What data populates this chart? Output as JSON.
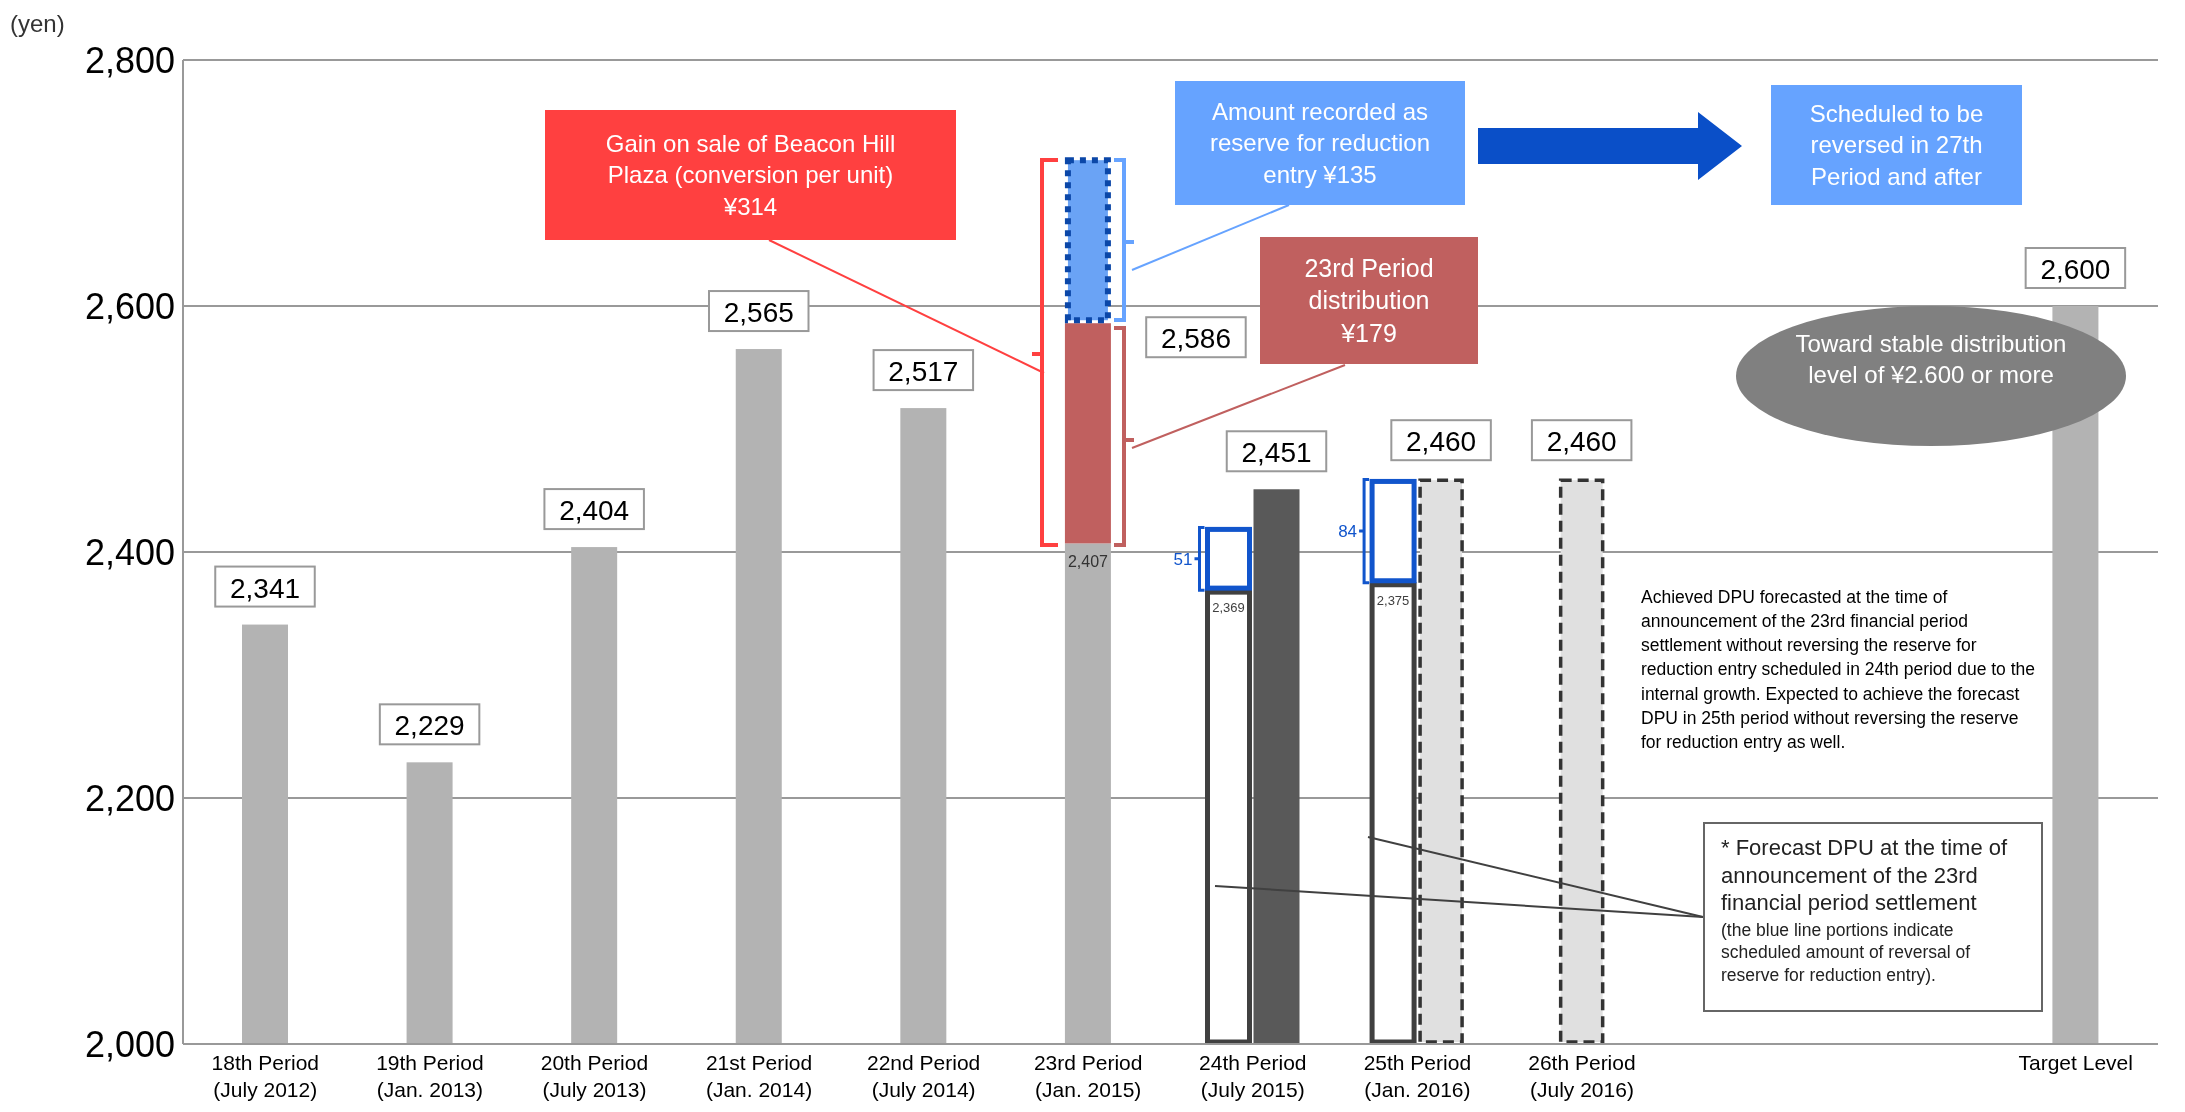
{
  "chart_data": {
    "type": "bar",
    "ylabel": "(yen)",
    "categories": [
      "18th Period (July 2012)",
      "19th Period (Jan. 2013)",
      "20th Period (July 2013)",
      "21st Period (Jan. 2014)",
      "22nd Period (July 2014)",
      "23rd Period (Jan. 2015)",
      "24th Period (July 2015)",
      "25th Period (Jan. 2016)",
      "26th Period (July 2016)",
      null,
      null,
      "Target Level"
    ],
    "ylim": [
      2000,
      2800
    ],
    "yticks": [
      {
        "value": 2000,
        "label": "2,000"
      },
      {
        "value": 2200,
        "label": "2,200"
      },
      {
        "value": 2400,
        "label": "2,400"
      },
      {
        "value": 2600,
        "label": "2,600"
      },
      {
        "value": 2800,
        "label": "2,800"
      }
    ],
    "grid": "y",
    "series": [
      {
        "color": "#b3b3b3",
        "values": [
          2341,
          2229,
          2404,
          2565,
          2517,
          2407,
          null,
          null,
          null,
          null,
          null,
          2600
        ],
        "value_labels": [
          "2,341",
          "2,229",
          "2,404",
          "2,565",
          "2,517",
          "2,407",
          null,
          null,
          null,
          null,
          null,
          "2,600"
        ]
      },
      {
        "color": "#404040",
        "line_style": "solid",
        "values": [
          null,
          null,
          null,
          null,
          null,
          null,
          2369,
          2375,
          null,
          null,
          null,
          null
        ],
        "value_labels": [
          null,
          null,
          null,
          null,
          null,
          null,
          "2,369",
          "2,375",
          null,
          null,
          null,
          null
        ]
      },
      {
        "color": "#c0605f",
        "values": [
          null,
          null,
          null,
          null,
          null,
          179,
          null,
          null,
          null,
          null,
          null,
          null
        ],
        "base": [
          null,
          null,
          null,
          null,
          null,
          2407,
          null,
          null,
          null,
          null,
          null,
          null
        ]
      },
      {
        "color": "#6aa3f5",
        "line_style": "dotted",
        "values": [
          null,
          null,
          null,
          null,
          null,
          135,
          null,
          null,
          null,
          null,
          null,
          null
        ],
        "base": [
          null,
          null,
          null,
          null,
          null,
          2586,
          null,
          null,
          null,
          null,
          null,
          null
        ]
      },
      {
        "color": "#1155cc",
        "line_style": "solid",
        "values": [
          null,
          null,
          null,
          null,
          null,
          null,
          51,
          84,
          null,
          null,
          null,
          null
        ],
        "base": [
          null,
          null,
          null,
          null,
          null,
          null,
          2369,
          2375,
          null,
          null,
          null,
          null
        ],
        "value_labels": [
          null,
          null,
          null,
          null,
          null,
          null,
          "51",
          "84",
          null,
          null,
          null,
          null
        ]
      },
      {
        "color": "#595959",
        "values": [
          null,
          null,
          null,
          null,
          null,
          null,
          2451,
          null,
          null,
          null,
          null,
          null
        ],
        "value_labels": [
          null,
          null,
          null,
          null,
          null,
          null,
          "2,451",
          null,
          null,
          null,
          null,
          null
        ]
      },
      {
        "color": "#e0e0e0",
        "line_style": "dashed",
        "values": [
          null,
          null,
          null,
          null,
          null,
          null,
          null,
          2460,
          2460,
          null,
          null,
          null
        ],
        "value_labels": [
          null,
          null,
          null,
          null,
          null,
          null,
          null,
          "2,460",
          "2,460",
          null,
          null,
          null
        ]
      }
    ],
    "annotations": [
      "Gain on sale of Beacon Hill Plaza (conversion per unit) ¥314",
      "Amount recorded as reserve for reduction entry ¥135",
      "Scheduled to be reversed in 27th Period and after",
      "23rd Period distribution ¥179",
      "Toward stable distribution level of ¥2.600 or more",
      "Achieved DPU forecasted at the time of announcement of the 23rd financial period settlement without reversing the reserve for reduction entry scheduled in 24th period due to the internal growth. Expected to achieve the forecast DPU in 25th period without reversing the reserve for reduction entry as well.",
      "* Forecast DPU at the time of announcement of the 23rd financial period settlement",
      "(the blue line portions indicate scheduled amount of reversal of reserve for reduction entry).",
      {
        "text": "2,586",
        "x": "23rd Period (Jan. 2015)",
        "y": 2586
      }
    ]
  }
}
